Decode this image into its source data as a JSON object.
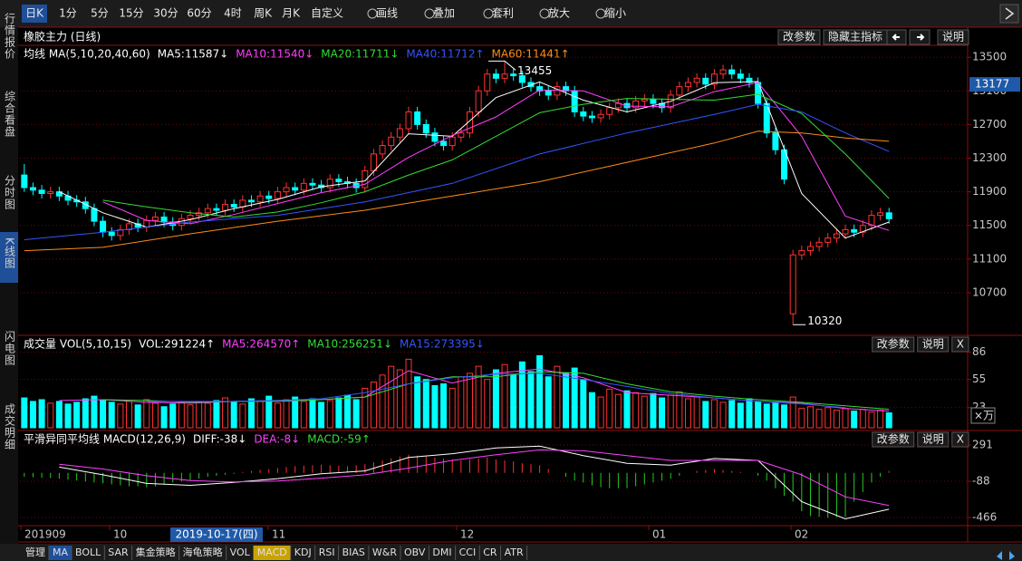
{
  "toolbar": [
    "日K",
    "1分",
    "5分",
    "15分",
    "30分",
    "60分",
    "4时",
    "周K",
    "月K",
    "自定义",
    "画线",
    "叠加",
    "套利",
    "放大",
    "缩小"
  ],
  "sidebar": [
    "行情报价",
    "综合看盘",
    "分时图",
    "K线图",
    "闪电图",
    "成交明细"
  ],
  "chart_data": [
    {
      "type": "candlestick",
      "title": "橡胶主力 (日线)",
      "legend_title": "均线 MA(5,10,20,40,60)",
      "buttons": [
        "改参数",
        "隐藏主指标",
        "说明"
      ],
      "up_color": "#ff3232",
      "down_color": "#00ffff",
      "xlim": [
        -0.5,
        108
      ],
      "open": [
        12100,
        11950,
        11920,
        11880,
        11900,
        11850,
        11800,
        11780,
        11700,
        11550,
        11420,
        11380,
        11450,
        11520,
        11480,
        11560,
        11600,
        11540,
        11500,
        11580,
        11620,
        11650,
        11700,
        11680,
        11750,
        11720,
        11800,
        11780,
        11850,
        11820,
        11900,
        11950,
        11920,
        12000,
        11980,
        11950,
        12050,
        12020,
        12000,
        11950,
        12150,
        12350,
        12450,
        12550,
        12650,
        12850,
        12700,
        12600,
        12500,
        12450,
        12550,
        12600,
        12850,
        13100,
        13300,
        13250,
        13300,
        13280,
        13200,
        13150,
        13100,
        13050,
        13150,
        13100,
        12850,
        12800,
        12780,
        12820,
        12900,
        12950,
        12900,
        12980,
        13000,
        12950,
        12900,
        13050,
        13150,
        13200,
        13250,
        13180,
        13300,
        13350,
        13300,
        13250,
        13200,
        12950,
        12600,
        12400,
        10450,
        11150,
        11200,
        11250,
        11300,
        11350,
        11400,
        11450,
        11420,
        11500,
        11620,
        11650
      ],
      "high": [
        12230,
        12010,
        11980,
        11960,
        11960,
        11910,
        11860,
        11840,
        11760,
        11610,
        11480,
        11510,
        11580,
        11580,
        11620,
        11660,
        11660,
        11600,
        11640,
        11680,
        11710,
        11760,
        11760,
        11810,
        11810,
        11860,
        11860,
        11910,
        11910,
        11960,
        12010,
        12010,
        12060,
        12060,
        12040,
        12110,
        12110,
        12080,
        12060,
        12210,
        12410,
        12510,
        12610,
        12710,
        12910,
        12910,
        12760,
        12660,
        12560,
        12610,
        12660,
        12910,
        13160,
        13360,
        13360,
        13455,
        13360,
        13340,
        13260,
        13210,
        13160,
        13210,
        13210,
        13160,
        12910,
        12860,
        12880,
        12960,
        13010,
        13010,
        13040,
        13060,
        13060,
        13010,
        13110,
        13210,
        13260,
        13310,
        13310,
        13360,
        13410,
        13410,
        13360,
        13310,
        13260,
        13010,
        12660,
        12460,
        11210,
        11260,
        11310,
        11360,
        11410,
        11460,
        11510,
        11510,
        11560,
        11680,
        11710,
        11710
      ],
      "low": [
        11900,
        11860,
        11820,
        11820,
        11790,
        11740,
        11720,
        11640,
        11490,
        11360,
        11320,
        11320,
        11390,
        11420,
        11420,
        11500,
        11480,
        11440,
        11440,
        11520,
        11560,
        11590,
        11620,
        11620,
        11660,
        11660,
        11720,
        11720,
        11760,
        11760,
        11840,
        11860,
        11860,
        11920,
        11890,
        11890,
        11960,
        11940,
        11890,
        11890,
        12090,
        12290,
        12390,
        12490,
        12590,
        12640,
        12540,
        12440,
        12390,
        12390,
        12490,
        12540,
        12790,
        13040,
        13190,
        13190,
        13220,
        13140,
        13090,
        13040,
        12990,
        12990,
        13040,
        12790,
        12740,
        12720,
        12720,
        12760,
        12840,
        12840,
        12840,
        12920,
        12890,
        12840,
        12840,
        12990,
        13090,
        13140,
        13120,
        13120,
        13240,
        13240,
        13190,
        13140,
        12890,
        12540,
        12340,
        11990,
        10320,
        11090,
        11140,
        11190,
        11240,
        11290,
        11340,
        11360,
        11360,
        11440,
        11560,
        11520
      ],
      "close": [
        11950,
        11920,
        11880,
        11900,
        11850,
        11800,
        11780,
        11700,
        11550,
        11420,
        11380,
        11450,
        11520,
        11480,
        11560,
        11600,
        11540,
        11500,
        11580,
        11620,
        11650,
        11700,
        11680,
        11750,
        11720,
        11800,
        11780,
        11850,
        11820,
        11900,
        11950,
        11920,
        12000,
        11980,
        11950,
        12050,
        12020,
        12000,
        11950,
        12150,
        12350,
        12450,
        12550,
        12650,
        12850,
        12700,
        12600,
        12500,
        12450,
        12550,
        12600,
        12850,
        13100,
        13300,
        13250,
        13300,
        13280,
        13200,
        13150,
        13100,
        13050,
        13150,
        13100,
        12850,
        12800,
        12780,
        12820,
        12900,
        12950,
        12900,
        12980,
        13000,
        12950,
        12900,
        13050,
        13150,
        13200,
        13250,
        13180,
        13300,
        13350,
        13300,
        13250,
        13200,
        12950,
        12600,
        12400,
        12050,
        11150,
        11200,
        11250,
        11300,
        11350,
        11400,
        11450,
        11420,
        11500,
        11620,
        11650,
        11580
      ],
      "series": [
        {
          "name": "MA5:11587↓",
          "color": "#ffffff",
          "x": [
            4,
            9,
            14,
            19,
            24,
            29,
            34,
            39,
            44,
            49,
            54,
            59,
            64,
            69,
            74,
            79,
            84,
            89,
            94,
            99
          ],
          "values": [
            11900,
            11650,
            11480,
            11568,
            11700,
            11810,
            11960,
            12030,
            12590,
            12560,
            13020,
            13206,
            12990,
            12850,
            12976,
            13196,
            13210,
            11880,
            11350,
            11540
          ]
        },
        {
          "name": "MA10:11540↓",
          "color": "#ff40ff",
          "x": [
            9,
            14,
            19,
            24,
            29,
            34,
            39,
            44,
            49,
            54,
            59,
            64,
            69,
            74,
            79,
            84,
            89,
            94,
            99
          ],
          "values": [
            11780,
            11560,
            11520,
            11630,
            11760,
            11890,
            11990,
            12310,
            12570,
            12790,
            13110,
            13100,
            12920,
            12910,
            13090,
            13200,
            12560,
            11610,
            11440
          ]
        },
        {
          "name": "MA20:11711↓",
          "color": "#33dd33",
          "x": [
            9,
            14,
            19,
            24,
            29,
            34,
            39,
            44,
            49,
            54,
            59,
            64,
            69,
            74,
            79,
            84,
            89,
            94,
            99
          ],
          "values": [
            11800,
            11720,
            11650,
            11600,
            11660,
            11770,
            11900,
            12100,
            12280,
            12560,
            12840,
            12940,
            13010,
            13000,
            12990,
            13060,
            12830,
            12350,
            11820
          ]
        },
        {
          "name": "MA40:11712↑",
          "color": "#3355ff",
          "x": [
            0,
            9,
            19,
            29,
            39,
            49,
            59,
            69,
            79,
            84,
            89,
            94,
            99
          ],
          "values": [
            11330,
            11420,
            11540,
            11620,
            11780,
            12000,
            12350,
            12600,
            12820,
            12940,
            12850,
            12600,
            12380
          ]
        },
        {
          "name": "MA60:11441↑",
          "color": "#ff8c1a",
          "x": [
            0,
            9,
            19,
            29,
            39,
            49,
            59,
            69,
            79,
            84,
            89,
            94,
            99
          ],
          "values": [
            11200,
            11240,
            11400,
            11550,
            11680,
            11850,
            12020,
            12250,
            12480,
            12620,
            12600,
            12540,
            12500
          ]
        }
      ],
      "ylim": [
        10215,
        13620
      ],
      "yticks": [
        13500,
        13100,
        12700,
        12300,
        11900,
        11500,
        11100,
        10700
      ],
      "last_price": 13177,
      "grid": true
    },
    {
      "type": "bar",
      "title": "成交量 VOL(5,10,15)",
      "vol_label": "VOL:291224↑",
      "buttons": [
        "改参数",
        "说明",
        "X"
      ],
      "values": [
        34,
        30,
        32,
        28,
        30,
        27,
        29,
        33,
        36,
        31,
        29,
        27,
        30,
        26,
        32,
        28,
        24,
        27,
        29,
        26,
        30,
        28,
        31,
        34,
        29,
        27,
        33,
        30,
        36,
        28,
        32,
        35,
        30,
        33,
        29,
        31,
        34,
        37,
        32,
        45,
        52,
        60,
        70,
        66,
        78,
        58,
        55,
        48,
        50,
        45,
        58,
        62,
        70,
        55,
        66,
        72,
        60,
        75,
        64,
        82,
        58,
        70,
        62,
        68,
        55,
        40,
        35,
        44,
        38,
        42,
        40,
        36,
        39,
        34,
        37,
        41,
        33,
        35,
        30,
        32,
        29,
        31,
        28,
        33,
        30,
        27,
        29,
        26,
        35,
        22,
        24,
        21,
        23,
        20,
        22,
        19,
        21,
        18,
        20,
        17
      ],
      "series": [
        {
          "name": "MA5:264570↑",
          "color": "#ff40ff",
          "x": [
            4,
            9,
            14,
            19,
            24,
            29,
            34,
            39,
            44,
            49,
            54,
            59,
            64,
            69,
            74,
            79,
            84,
            89,
            94,
            99
          ],
          "values": [
            31,
            32,
            29,
            28,
            30,
            31,
            32,
            35,
            65,
            51,
            62,
            67,
            57,
            40,
            37,
            34,
            30,
            28,
            22,
            19
          ]
        },
        {
          "name": "MA10:256251↓",
          "color": "#33dd33",
          "x": [
            9,
            14,
            19,
            24,
            29,
            34,
            39,
            44,
            49,
            54,
            59,
            64,
            69,
            74,
            79,
            84,
            89,
            94,
            99
          ],
          "values": [
            32,
            31,
            29,
            30,
            30,
            32,
            35,
            50,
            58,
            58,
            64,
            62,
            50,
            41,
            36,
            32,
            29,
            25,
            21
          ]
        },
        {
          "name": "MA15:273395↓",
          "color": "#3355ff",
          "x": [
            14,
            19,
            24,
            29,
            34,
            39,
            44,
            49,
            54,
            59,
            64,
            69,
            74,
            79,
            84,
            89,
            94
          ],
          "values": [
            30,
            30,
            30,
            31,
            33,
            40,
            50,
            57,
            61,
            62,
            55,
            47,
            39,
            34,
            30,
            27,
            23
          ]
        }
      ],
      "ylim": [
        0,
        98
      ],
      "yticks": [
        86,
        55,
        23
      ],
      "unit": "×万",
      "grid": true
    },
    {
      "type": "macd",
      "title": "平滑异同平均线 MACD(12,26,9)",
      "buttons": [
        "改参数",
        "说明",
        "X"
      ],
      "name": "MACD:-59↑",
      "up_color": "#ff3232",
      "down_color": "#22cc22",
      "values": [
        -40,
        -45,
        -50,
        -55,
        -60,
        -70,
        -80,
        -90,
        -100,
        -110,
        -120,
        -130,
        -140,
        -140,
        -150,
        -140,
        -120,
        -100,
        -90,
        -80,
        -60,
        -40,
        -30,
        -20,
        -10,
        10,
        20,
        30,
        40,
        50,
        60,
        70,
        75,
        80,
        85,
        80,
        75,
        70,
        80,
        90,
        110,
        130,
        150,
        170,
        190,
        180,
        170,
        160,
        150,
        140,
        130,
        140,
        150,
        160,
        140,
        130,
        120,
        100,
        90,
        80,
        40,
        0,
        -40,
        -80,
        -100,
        -130,
        -150,
        -160,
        -160,
        -160,
        -140,
        -120,
        -100,
        -80,
        -60,
        -30,
        0,
        20,
        30,
        40,
        30,
        20,
        10,
        0,
        -30,
        -80,
        -160,
        -240,
        -300,
        -400,
        -450,
        -460,
        -470,
        -460,
        -460,
        -300,
        -200,
        -100,
        -40,
        20
      ],
      "series": [
        {
          "name": "DIFF:-38↓",
          "color": "#ffffff",
          "x": [
            4,
            9,
            14,
            19,
            24,
            29,
            34,
            39,
            44,
            49,
            54,
            59,
            64,
            69,
            74,
            79,
            84,
            89,
            94,
            99
          ],
          "values": [
            60,
            -20,
            -110,
            -130,
            -100,
            -60,
            -10,
            20,
            160,
            200,
            260,
            280,
            180,
            100,
            80,
            150,
            130,
            -300,
            -480,
            -380
          ]
        },
        {
          "name": "DEA:-8↓",
          "color": "#ff40ff",
          "x": [
            4,
            9,
            14,
            19,
            24,
            29,
            34,
            39,
            44,
            49,
            54,
            59,
            64,
            69,
            74,
            79,
            84,
            89,
            94,
            99
          ],
          "values": [
            90,
            40,
            -30,
            -80,
            -95,
            -85,
            -55,
            -20,
            50,
            130,
            190,
            240,
            230,
            180,
            130,
            130,
            130,
            -20,
            -250,
            -340
          ]
        }
      ],
      "ylim": [
        -551,
        395
      ],
      "yticks": [
        291,
        -88,
        -466
      ],
      "grid": true
    }
  ],
  "x_axis_labels": [
    "201909",
    "10",
    "11",
    "12",
    "01",
    "02"
  ],
  "cursor_date": "2019-10-17(四)",
  "tabs": [
    "管理",
    "MA",
    "BOLL",
    "SAR",
    "集金策略",
    "海龟策略",
    "VOL",
    "MACD",
    "KDJ",
    "RSI",
    "BIAS",
    "W&R",
    "OBV",
    "DMI",
    "CCI",
    "CR",
    "ATR"
  ]
}
